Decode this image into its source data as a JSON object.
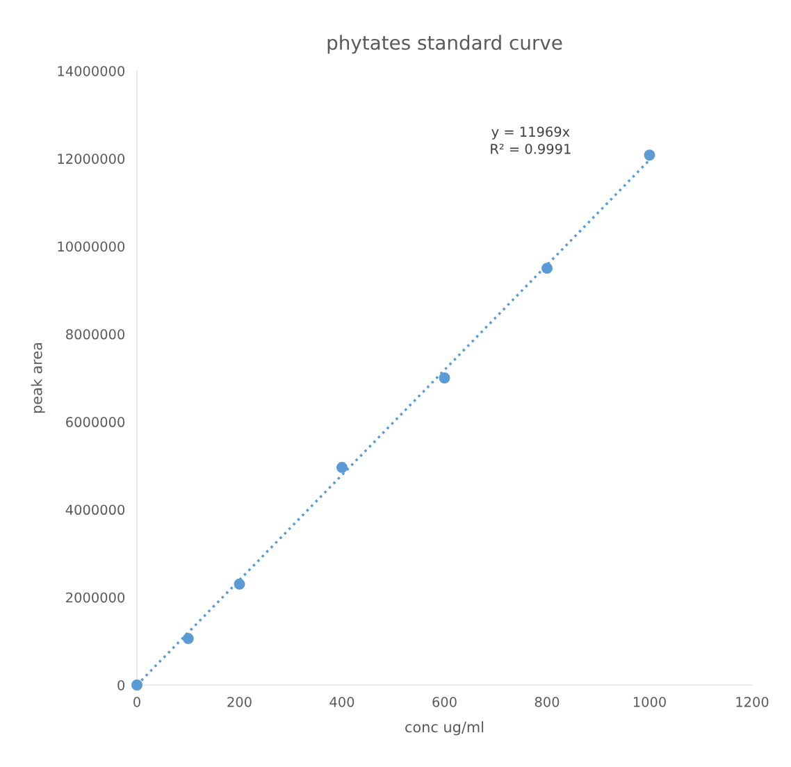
{
  "chart_data": {
    "type": "scatter",
    "title": "phytates standard curve",
    "xlabel": "conc ug/ml",
    "ylabel": "peak area",
    "xlim": [
      0,
      1200
    ],
    "xticks": [
      0,
      200,
      400,
      600,
      800,
      1000,
      1200
    ],
    "ylim": [
      0,
      14000000
    ],
    "yticks": [
      0,
      2000000,
      4000000,
      6000000,
      8000000,
      10000000,
      12000000,
      14000000
    ],
    "grid": false,
    "legend": false,
    "marker": "circle",
    "series": [
      {
        "color": "#5b9bd5",
        "x": [
          0,
          100,
          200,
          400,
          600,
          800,
          1000
        ],
        "values": [
          0,
          1060000,
          2300000,
          4960000,
          7000000,
          9500000,
          12080000
        ]
      },
      {
        "type": "line",
        "color": "#5b9bd5",
        "line_style": "dotted",
        "marker": "none",
        "x": [
          0,
          1000
        ],
        "values": [
          0,
          11970000
        ]
      }
    ],
    "annotations": [
      "y = 11969x\nR² = 0.9991"
    ]
  }
}
